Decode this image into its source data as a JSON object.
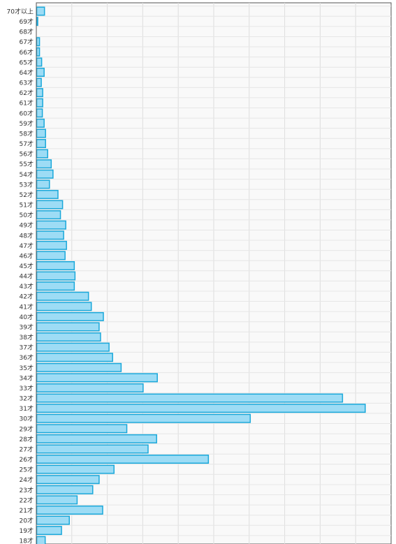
{
  "chart_data": {
    "type": "bar",
    "orientation": "horizontal",
    "title": "",
    "xlabel": "",
    "ylabel": "",
    "categories": [
      "70才以上",
      "69才",
      "68才",
      "67才",
      "66才",
      "65才",
      "64才",
      "63才",
      "62才",
      "61才",
      "60才",
      "59才",
      "58才",
      "57才",
      "56才",
      "55才",
      "54才",
      "53才",
      "52才",
      "51才",
      "50才",
      "49才",
      "48才",
      "47才",
      "46才",
      "45才",
      "44才",
      "43才",
      "42才",
      "41才",
      "40才",
      "39才",
      "38才",
      "37才",
      "36才",
      "35才",
      "34才",
      "33才",
      "32才",
      "31才",
      "30才",
      "29才",
      "28才",
      "27才",
      "26才",
      "25才",
      "24才",
      "23才",
      "22才",
      "21才",
      "20才",
      "19才",
      "18才"
    ],
    "values": [
      22,
      2,
      0,
      8,
      8,
      14,
      21,
      13,
      17,
      17,
      16,
      21,
      25,
      25,
      31,
      41,
      46,
      36,
      60,
      73,
      67,
      82,
      76,
      84,
      80,
      106,
      108,
      106,
      146,
      154,
      188,
      176,
      180,
      204,
      214,
      238,
      340,
      300,
      862,
      926,
      602,
      254,
      338,
      314,
      484,
      218,
      176,
      158,
      114,
      186,
      92,
      70,
      24
    ],
    "xlim": [
      0,
      1000
    ],
    "grid": true,
    "legend": "none",
    "colors": {
      "bar_fill": "#9ddcf5",
      "bar_stroke": "#1aa8da",
      "grid": "#dddddd",
      "plot_bg": "#f9f9f9",
      "axis": "#555555"
    }
  }
}
